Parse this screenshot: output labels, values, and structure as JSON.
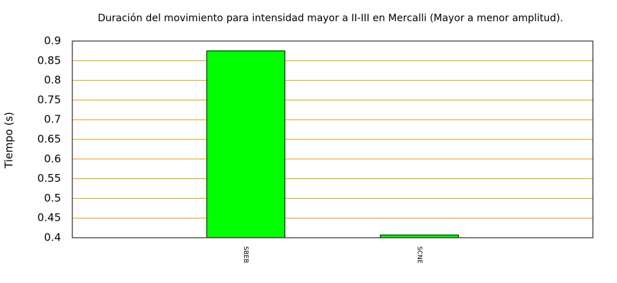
{
  "chart_data": {
    "type": "bar",
    "title": "Duración del movimiento para intensidad mayor a II-III en Mercalli (Mayor a menor amplitud).",
    "y_label": "Tiempo (s)",
    "categories": [
      "SBEB",
      "SCNE"
    ],
    "values": [
      0.875,
      0.407
    ],
    "color": "#00ff00",
    "ylim": [
      0.4,
      0.9
    ],
    "yticks": [
      0.4,
      0.45,
      0.5,
      0.55,
      0.6,
      0.65,
      0.7,
      0.75,
      0.8,
      0.85,
      0.9
    ],
    "grid": true,
    "grid_color": "#e0a000"
  }
}
